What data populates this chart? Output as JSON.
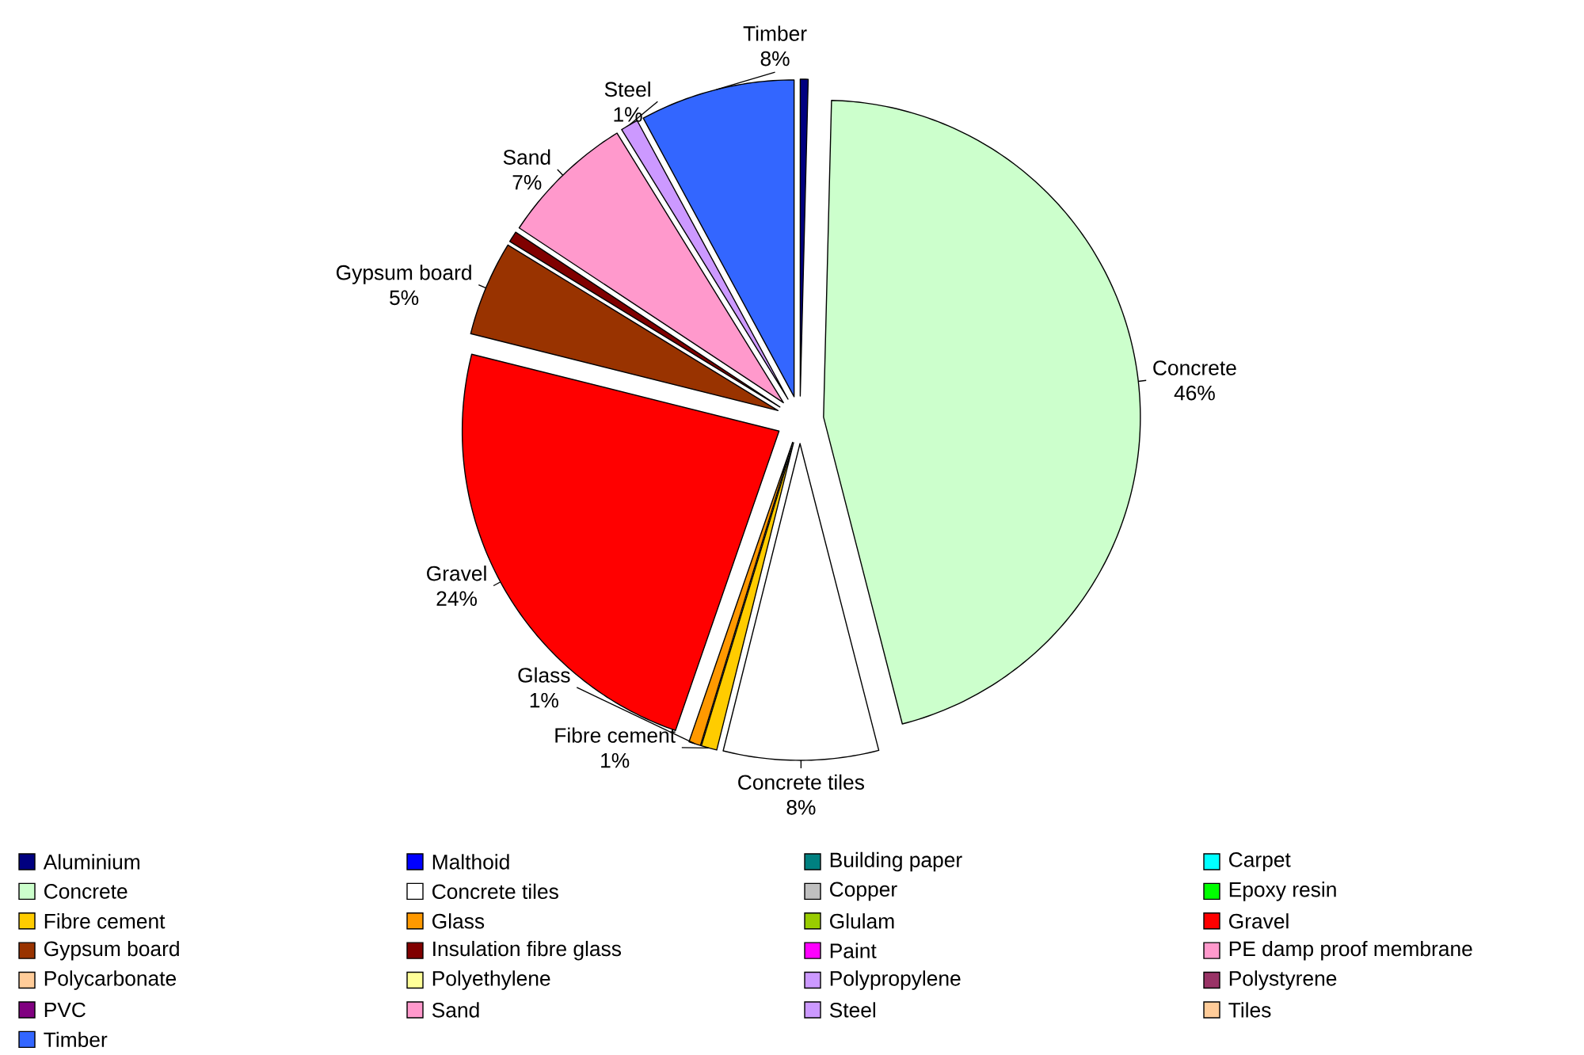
{
  "chart_data": {
    "type": "pie",
    "categories": [
      "Aluminium",
      "Malthoid",
      "Building paper",
      "Carpet",
      "Concrete",
      "Concrete tiles",
      "Copper",
      "Epoxy resin",
      "Fibre cement",
      "Glass",
      "Glulam",
      "Gravel",
      "Gypsum board",
      "Insulation fibre glass",
      "Paint",
      "PE damp proof membrane",
      "Polycarbonate",
      "Polyethylene",
      "Polypropylene",
      "Polystyrene",
      "PVC",
      "Sand",
      "Steel",
      "Tiles",
      "Timber"
    ],
    "values": [
      0.4,
      0,
      0,
      0,
      45.6,
      7.9,
      0,
      0,
      0.8,
      0.6,
      0,
      23.6,
      4.85,
      0.55,
      0,
      0,
      0,
      0,
      0,
      0,
      0,
      6.9,
      0.9,
      0,
      7.9
    ],
    "colors": [
      "#000080",
      "#0000ff",
      "#008080",
      "#00ffff",
      "#ccffcc",
      "#ffffff",
      "#c0c0c0",
      "#00ff00",
      "#ffcc00",
      "#ff9900",
      "#99cc00",
      "#ff0000",
      "#993300",
      "#800000",
      "#ff00ff",
      "#ff99cc",
      "#ffcc99",
      "#ffff99",
      "#cc99ff",
      "#993366",
      "#800080",
      "#ff99cc",
      "#cc99ff",
      "#ffcc99",
      "#3366ff"
    ],
    "value_labels": [
      null,
      null,
      null,
      null,
      "46%",
      "8%",
      null,
      null,
      "1%",
      "1%",
      null,
      "24%",
      "5%",
      null,
      null,
      null,
      null,
      null,
      null,
      null,
      null,
      "7%",
      "1%",
      null,
      "8%"
    ],
    "legend": "bottom"
  }
}
